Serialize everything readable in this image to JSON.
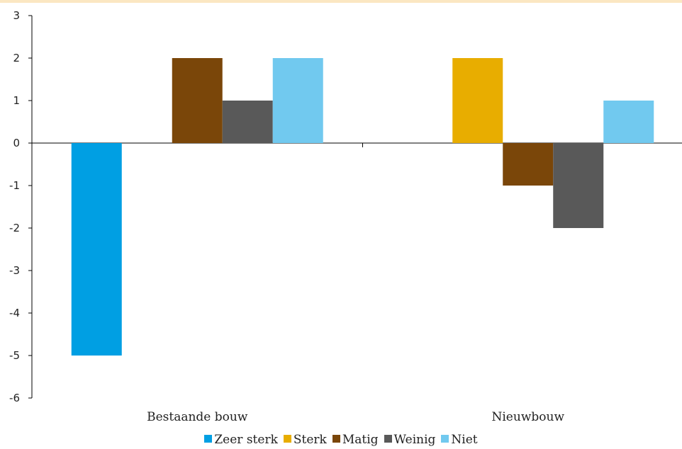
{
  "chart_data": {
    "type": "bar",
    "categories": [
      "Bestaande bouw",
      "Nieuwbouw"
    ],
    "series": [
      {
        "name": "Zeer sterk",
        "values": [
          -5,
          0
        ],
        "color": "#009fe3"
      },
      {
        "name": "Sterk",
        "values": [
          0,
          2
        ],
        "color": "#e8ad00"
      },
      {
        "name": "Matig",
        "values": [
          2,
          -1
        ],
        "color": "#7a4609"
      },
      {
        "name": "Weinig",
        "values": [
          1,
          -2
        ],
        "color": "#595959"
      },
      {
        "name": "Niet",
        "values": [
          2,
          1
        ],
        "color": "#71c9ef"
      }
    ],
    "ylim": [
      -6,
      3
    ],
    "yticks": [
      "3",
      "2",
      "1",
      "0",
      "-1",
      "-2",
      "-3",
      "-4",
      "-5",
      "-6"
    ],
    "ytick_values": [
      3,
      2,
      1,
      0,
      -1,
      -2,
      -3,
      -4,
      -5,
      -6
    ],
    "grid": false,
    "legend_position": "bottom",
    "title": "",
    "xlabel": "",
    "ylabel": ""
  }
}
